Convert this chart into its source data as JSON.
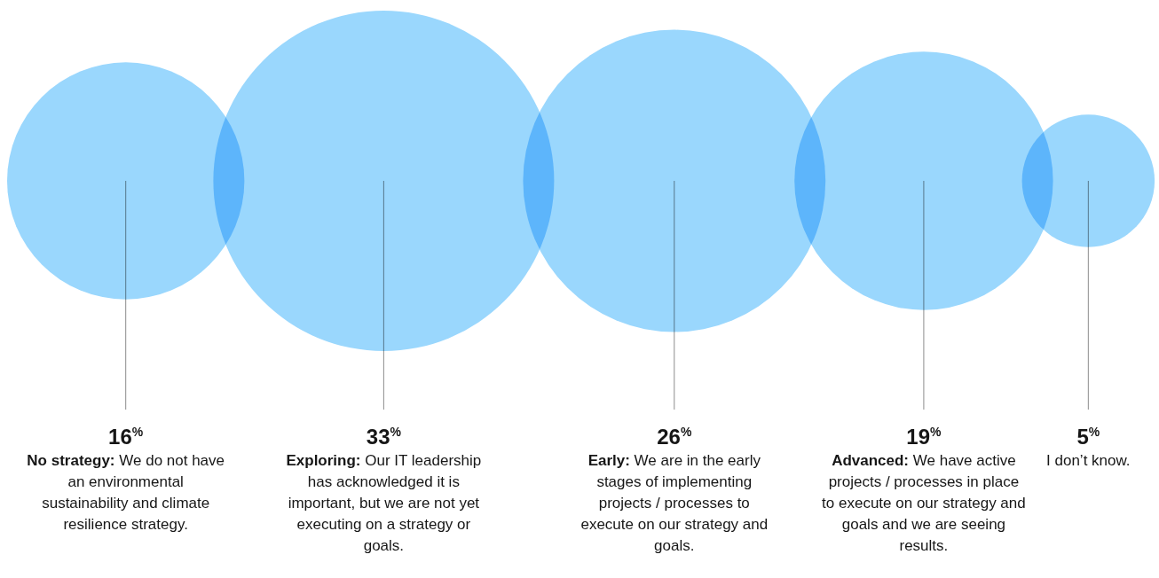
{
  "chart_data": {
    "type": "other",
    "categories": [
      "No strategy: We do not have an environmental sustainability and climate resilience strategy.",
      "Exploring: Our IT leadership has acknowledged it is important, but we are not yet executing on a strategy or goals.",
      "Early: We are in the early stages of implementing projects / processes to execute on our strategy and goals.",
      "Advanced: We have active projects / processes in place to execute on our strategy and goals and we are seeing results.",
      "I don’t know."
    ],
    "values": [
      16,
      33,
      26,
      19,
      5
    ],
    "value_labels": [
      "16$^{%}$",
      "33$^{%}$",
      "26$^{%}$",
      "19$^{%}$",
      "5$^{%}$"
    ],
    "color": "#9ad7fd"
  }
}
